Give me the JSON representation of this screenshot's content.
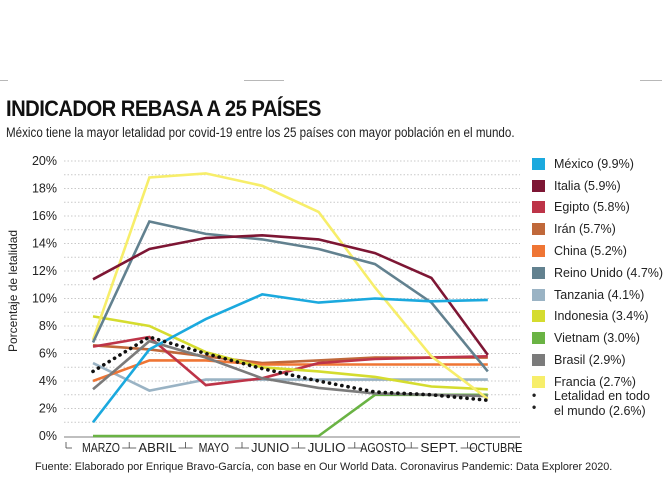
{
  "header": {
    "title": "INDICADOR REBASA A 25 PAÍSES",
    "subtitle": "México tiene la mayor letalidad por covid-19 entre los 25 países con mayor población en el mundo."
  },
  "footer": {
    "source": "Fuente: Elaborado por Enrique Bravo-García, con base en Our World Data. Coronavirus Pandemic: Data Explorer 2020."
  },
  "chart_data": {
    "type": "line",
    "title": "INDICADOR REBASA A 25 PAÍSES",
    "subtitle": "México tiene la mayor letalidad por covid-19 entre los 25 países con mayor población en el mundo.",
    "xlabel": "",
    "ylabel": "Porcentaje de letalidad",
    "ylim": [
      0,
      20
    ],
    "yticks": [
      0,
      2,
      4,
      6,
      8,
      10,
      12,
      14,
      16,
      18,
      20
    ],
    "ytick_labels": [
      "0%",
      "2%",
      "4%",
      "6%",
      "8%",
      "10%",
      "12%",
      "14%",
      "16%",
      "18%",
      "20%"
    ],
    "grid": "horizontal dotted, every 1%",
    "legend_position": "right",
    "categories": [
      "MARZO",
      "ABRIL",
      "MAYO",
      "JUNIO",
      "JULIO",
      "AGOSTO",
      "SEPT.",
      "OCTUBRE"
    ],
    "series": [
      {
        "name": "México (9.9%)",
        "color": "#1ba9de",
        "style": "solid",
        "values": [
          1.0,
          6.3,
          8.5,
          10.3,
          9.7,
          10.0,
          9.8,
          9.9
        ]
      },
      {
        "name": "Italia (5.9%)",
        "color": "#7d1634",
        "style": "solid",
        "values": [
          11.4,
          13.6,
          14.4,
          14.6,
          14.3,
          13.3,
          11.5,
          5.9
        ]
      },
      {
        "name": "Egipto (5.8%)",
        "color": "#bd3448",
        "style": "solid",
        "values": [
          6.5,
          7.2,
          3.7,
          4.2,
          5.3,
          5.6,
          5.7,
          5.8
        ]
      },
      {
        "name": "Irán (5.7%)",
        "color": "#c0683a",
        "style": "solid",
        "values": [
          6.6,
          6.3,
          5.8,
          5.3,
          5.5,
          5.7,
          5.7,
          5.7
        ]
      },
      {
        "name": "China (5.2%)",
        "color": "#ef7534",
        "style": "solid",
        "values": [
          4.0,
          5.5,
          5.5,
          5.2,
          5.2,
          5.2,
          5.2,
          5.2
        ]
      },
      {
        "name": "Reino Unido (4.7%)",
        "color": "#62818f",
        "style": "solid",
        "values": [
          6.8,
          15.6,
          14.7,
          14.3,
          13.6,
          12.5,
          9.7,
          4.7
        ]
      },
      {
        "name": "Tanzania (4.1%)",
        "color": "#9ab3c4",
        "style": "solid",
        "values": [
          5.3,
          3.3,
          4.1,
          4.1,
          4.1,
          4.1,
          4.1,
          4.1
        ]
      },
      {
        "name": "Indonesia (3.4%)",
        "color": "#d5dc2f",
        "style": "solid",
        "values": [
          8.7,
          8.0,
          6.1,
          5.0,
          4.7,
          4.3,
          3.6,
          3.4
        ]
      },
      {
        "name": "Vietnam (3.0%)",
        "color": "#6ab344",
        "style": "solid",
        "values": [
          0.0,
          0.0,
          0.0,
          0.0,
          0.0,
          3.0,
          3.0,
          3.0
        ]
      },
      {
        "name": "Brasil (2.9%)",
        "color": "#7b7b7b",
        "style": "solid",
        "values": [
          3.4,
          6.9,
          5.7,
          4.2,
          3.5,
          3.1,
          3.0,
          2.9
        ]
      },
      {
        "name": "Francia (2.7%)",
        "color": "#f7ee6a",
        "style": "solid",
        "values": [
          7.0,
          18.8,
          19.1,
          18.2,
          16.3,
          10.8,
          5.8,
          2.7
        ]
      },
      {
        "name": "Letalidad en todo el mundo (2.6%)",
        "color": "#111111",
        "style": "dotted",
        "values": [
          4.7,
          7.2,
          6.0,
          4.9,
          4.0,
          3.2,
          3.0,
          2.6
        ]
      }
    ],
    "legend": {
      "world_line1": "Letalidad en todo",
      "world_line2": "el mundo (2.6%)"
    }
  }
}
